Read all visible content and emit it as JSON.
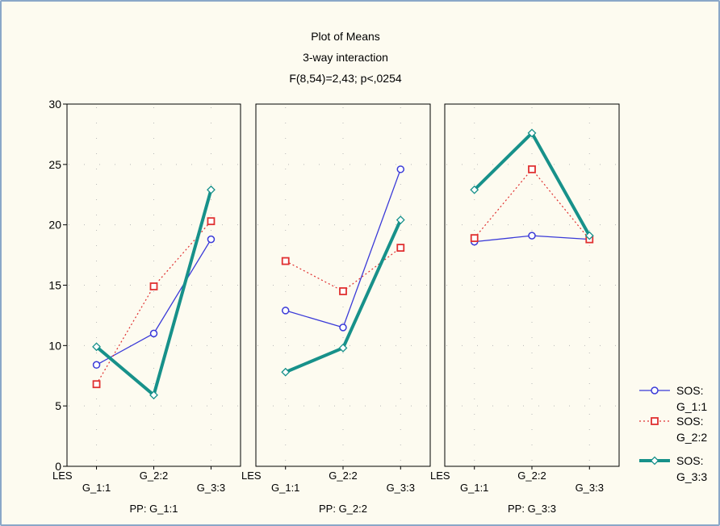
{
  "chart_data": {
    "type": "line",
    "title_lines": [
      "Plot of Means",
      "3-way interaction",
      "F(8,54)=2,43; p<,0254"
    ],
    "ylim": [
      0,
      30
    ],
    "yticks": [
      "0",
      "5",
      "10",
      "15",
      "20",
      "25",
      "30"
    ],
    "factor_label": "LES",
    "categories": [
      "G_1:1",
      "G_2:2",
      "G_3:3"
    ],
    "panels": [
      {
        "label": "PP: G_1:1",
        "series": [
          {
            "name": "SOS:\nG_1:1",
            "values": [
              8.4,
              11.0,
              18.8
            ]
          },
          {
            "name": "SOS:\nG_2:2",
            "values": [
              6.8,
              14.9,
              20.3
            ]
          },
          {
            "name": "SOS:\nG_3:3",
            "values": [
              9.9,
              5.9,
              22.9
            ]
          }
        ]
      },
      {
        "label": "PP: G_2:2",
        "series": [
          {
            "name": "SOS:\nG_1:1",
            "values": [
              12.9,
              11.5,
              24.6
            ]
          },
          {
            "name": "SOS:\nG_2:2",
            "values": [
              17.0,
              14.5,
              18.1
            ]
          },
          {
            "name": "SOS:\nG_3:3",
            "values": [
              7.8,
              9.8,
              20.4
            ]
          }
        ]
      },
      {
        "label": "PP: G_3:3",
        "series": [
          {
            "name": "SOS:\nG_1:1",
            "values": [
              18.6,
              19.1,
              18.8
            ]
          },
          {
            "name": "SOS:\nG_2:2",
            "values": [
              18.9,
              24.6,
              18.8
            ]
          },
          {
            "name": "SOS:\nG_3:3",
            "values": [
              22.9,
              27.6,
              19.1
            ]
          }
        ]
      }
    ],
    "legend": [
      {
        "lines": [
          "SOS:",
          "G_1:1"
        ],
        "color": "#3a3ad8",
        "style": "solid-thin",
        "marker": "circle"
      },
      {
        "lines": [
          "SOS:",
          "G_2:2"
        ],
        "color": "#e03030",
        "style": "dotted",
        "marker": "square"
      },
      {
        "lines": [
          "SOS:",
          "G_3:3"
        ],
        "color": "#17918a",
        "style": "solid-thick",
        "marker": "diamond"
      }
    ],
    "legend_position": "right",
    "grid": true,
    "grid_style": "dotted"
  }
}
